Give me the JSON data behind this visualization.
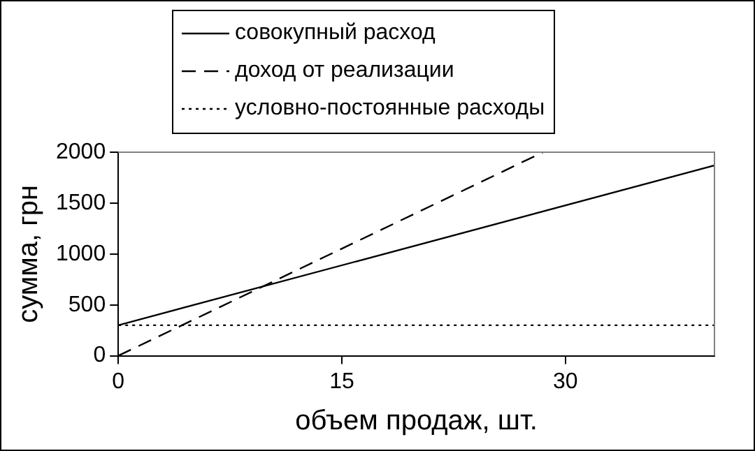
{
  "chart_data": {
    "type": "line",
    "xlabel": "объем продаж, шт.",
    "ylabel": "сумма, грн",
    "xlim": [
      0,
      40
    ],
    "xticks": [
      0,
      15,
      30
    ],
    "ylim": [
      0,
      2000
    ],
    "yticks": [
      0,
      500,
      1000,
      1500,
      2000
    ],
    "grid": false,
    "legend": "top",
    "marker": "none",
    "series": [
      {
        "name": "совокупный расход",
        "color": "#000000",
        "line_style": "solid",
        "x": [
          0,
          40
        ],
        "values": [
          300,
          1870
        ]
      },
      {
        "name": "доход от реализации",
        "color": "#000000",
        "line_style": "dashed",
        "x": [
          0,
          28.5
        ],
        "values": [
          0,
          2000
        ]
      },
      {
        "name": "условно-постоянные расходы",
        "color": "#000000",
        "line_style": "dotted",
        "x": [
          0,
          40
        ],
        "values": [
          300,
          300
        ]
      }
    ]
  }
}
